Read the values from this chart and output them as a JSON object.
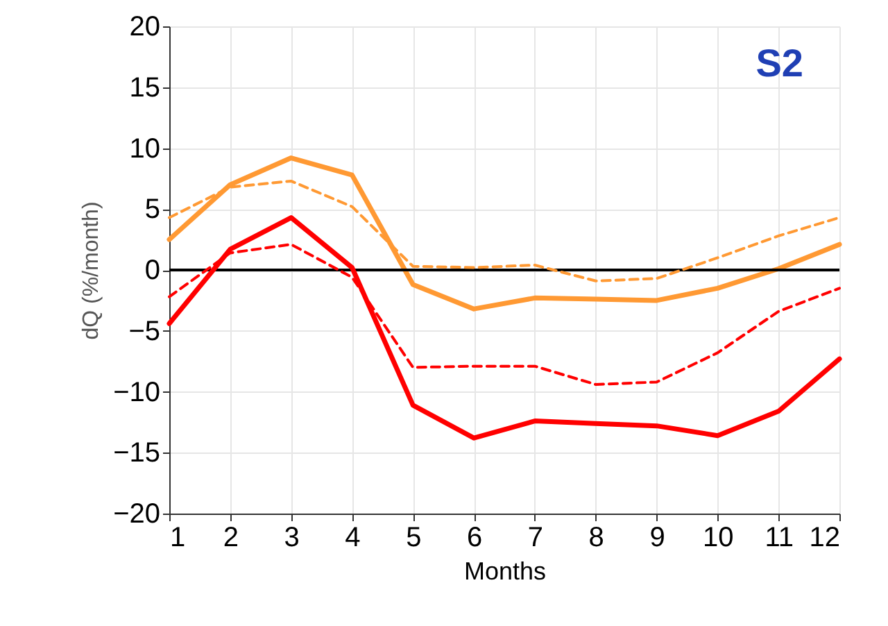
{
  "chart_data": {
    "type": "line",
    "xlabel": "Months",
    "ylabel": "dQ (%/month)",
    "x": [
      1,
      2,
      3,
      4,
      5,
      6,
      7,
      8,
      9,
      10,
      11,
      12
    ],
    "xlim": [
      1,
      12
    ],
    "xticks": [
      1,
      2,
      3,
      4,
      5,
      6,
      7,
      8,
      9,
      10,
      11,
      12
    ],
    "ylim": [
      -20,
      20
    ],
    "yticks": [
      -20,
      -15,
      -10,
      -5,
      0,
      5,
      10,
      15,
      20
    ],
    "grid": true,
    "marker": "none",
    "annotations": [
      "S2"
    ],
    "ref_lines": [
      {
        "axis": "y",
        "value": 0,
        "color": "#000000",
        "line_style": "solid"
      }
    ],
    "series": [
      {
        "color": "#ff9933",
        "line_style": "solid",
        "values": [
          2.5,
          7.0,
          9.2,
          7.8,
          -1.2,
          -3.2,
          -2.3,
          -2.4,
          -2.5,
          -1.5,
          0.1,
          2.1
        ]
      },
      {
        "color": "#ff9933",
        "line_style": "dashed",
        "values": [
          4.3,
          6.8,
          7.3,
          5.2,
          0.3,
          0.2,
          0.4,
          -0.9,
          -0.7,
          1.0,
          2.8,
          4.3
        ]
      },
      {
        "color": "#ff0000",
        "line_style": "solid",
        "values": [
          -4.4,
          1.7,
          4.3,
          0.2,
          -11.1,
          -13.8,
          -12.4,
          -12.6,
          -12.8,
          -13.6,
          -11.6,
          -7.3
        ]
      },
      {
        "color": "#ff0000",
        "line_style": "dashed",
        "values": [
          -2.2,
          1.4,
          2.1,
          -0.6,
          -8.0,
          -7.9,
          -7.9,
          -9.4,
          -9.2,
          -6.8,
          -3.4,
          -1.5
        ]
      }
    ]
  }
}
